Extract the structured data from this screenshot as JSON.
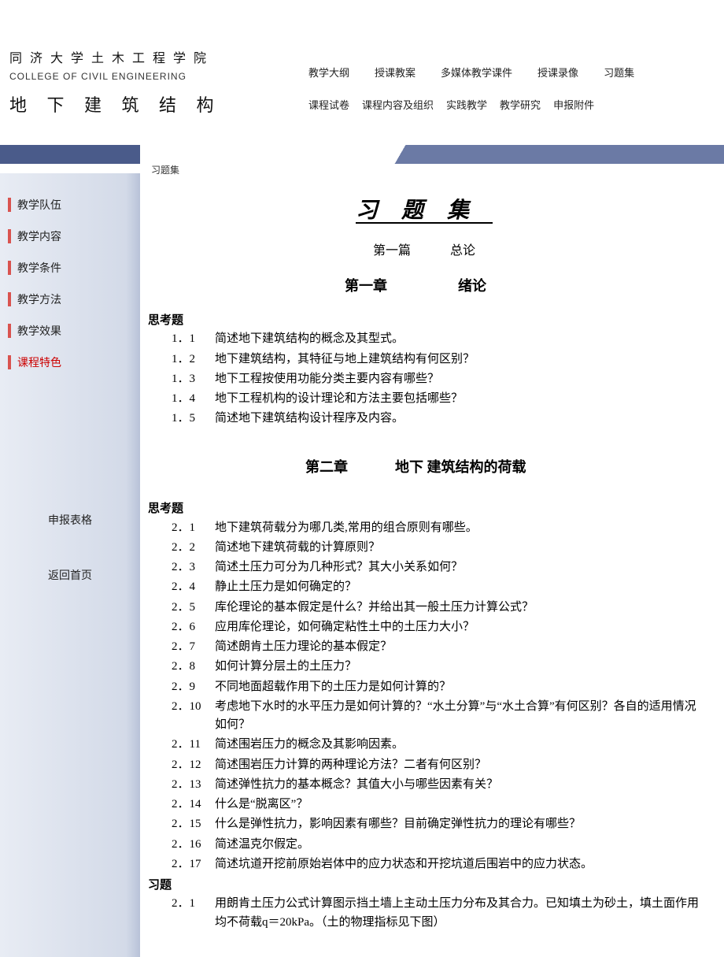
{
  "header": {
    "university": "同 济 大 学 土 木 工 程 学 院",
    "college_en": "COLLEGE OF CIVIL ENGINEERING",
    "course": "地 下 建 筑 结 构"
  },
  "nav": {
    "row1": [
      "教学大纲",
      "授课教案",
      "多媒体教学课件",
      "授课录像",
      "习题集"
    ],
    "row2": [
      "课程试卷",
      "课程内容及组织",
      "实践教学",
      "教学研究",
      "申报附件"
    ]
  },
  "breadcrumb": "习题集",
  "sidebar": {
    "items": [
      {
        "label": "教学队伍",
        "red": false
      },
      {
        "label": "教学内容",
        "red": false
      },
      {
        "label": "教学条件",
        "red": false
      },
      {
        "label": "教学方法",
        "red": false
      },
      {
        "label": "教学效果",
        "red": false
      },
      {
        "label": "课程特色",
        "red": true
      }
    ],
    "bottom": [
      {
        "label": "申报表格"
      },
      {
        "label": "返回首页"
      }
    ]
  },
  "content": {
    "main_title": "习题集",
    "part_label": "第一篇",
    "part_name": "总论",
    "chapter1_label": "第一章",
    "chapter1_name": "绪论",
    "thinking_label": "思考题",
    "exercise_label": "习题",
    "ch1_questions": [
      {
        "n": "1．1",
        "t": "简述地下建筑结构的概念及其型式。"
      },
      {
        "n": "1．2",
        "t": " 地下建筑结构，其特征与地上建筑结构有何区别？"
      },
      {
        "n": "1．3",
        "t": " 地下工程按使用功能分类主要内容有哪些？"
      },
      {
        "n": "1．4",
        "t": " 地下工程机构的设计理论和方法主要包括哪些？"
      },
      {
        "n": "1．5",
        "t": "简述地下建筑结构设计程序及内容。"
      }
    ],
    "chapter2_label": "第二章",
    "chapter2_name": "地下 建筑结构的荷载",
    "ch2_questions": [
      {
        "n": "2．1",
        "t": "地下建筑荷载分为哪几类,常用的组合原则有哪些。"
      },
      {
        "n": "2．2",
        "t": " 简述地下建筑荷载的计算原则？"
      },
      {
        "n": "2．3",
        "t": "简述土压力可分为几种形式？其大小关系如何？"
      },
      {
        "n": "2．4",
        "t": " 静止土压力是如何确定的？"
      },
      {
        "n": "2．5",
        "t": "库伦理论的基本假定是什么？并给出其一般土压力计算公式？"
      },
      {
        "n": "2．6",
        "t": " 应用库伦理论，如何确定粘性土中的土压力大小？"
      },
      {
        "n": "2．7",
        "t": " 简述朗肯土压力理论的基本假定？"
      },
      {
        "n": "2．8",
        "t": " 如何计算分层土的土压力？"
      },
      {
        "n": "2．9",
        "t": " 不同地面超载作用下的土压力是如何计算的？"
      },
      {
        "n": "2．10",
        "t": " 考虑地下水时的水平压力是如何计算的？“水土分算”与“水土合算”有何区别？各自的适用情况如何？"
      },
      {
        "n": "2．11",
        "t": " 简述围岩压力的概念及其影响因素。"
      },
      {
        "n": "2．12",
        "t": " 简述围岩压力计算的两种理论方法？二者有何区别？"
      },
      {
        "n": "2．13",
        "t": " 简述弹性抗力的基本概念？其值大小与哪些因素有关？"
      },
      {
        "n": "2．14",
        "t": " 什么是“脱离区”？"
      },
      {
        "n": "2．15",
        "t": " 什么是弹性抗力，影响因素有哪些？目前确定弹性抗力的理论有哪些？"
      },
      {
        "n": "2．16",
        "t": " 简述温克尔假定。"
      },
      {
        "n": "2．17",
        "t": " 简述坑道开挖前原始岩体中的应力状态和开挖坑道后围岩中的应力状态。"
      }
    ],
    "ch2_exercises": [
      {
        "n": "2．1",
        "t": "用朗肯土压力公式计算图示挡土墙上主动土压力分布及其合力。已知填土为砂土，填土面作用均不荷载q＝20kPa。（土的物理指标见下图）"
      }
    ]
  }
}
